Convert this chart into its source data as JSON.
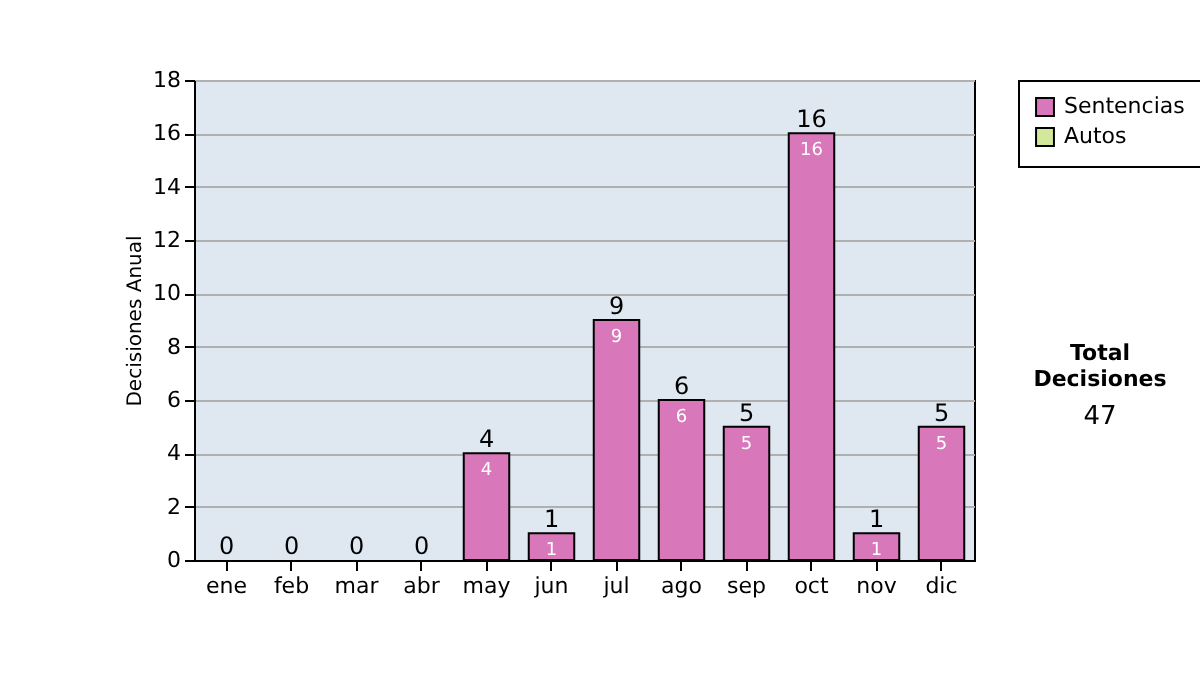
{
  "chart_data": {
    "type": "bar",
    "ylabel": "Decisiones Anual",
    "categories": [
      "ene",
      "feb",
      "mar",
      "abr",
      "may",
      "jun",
      "jul",
      "ago",
      "sep",
      "oct",
      "nov",
      "dic"
    ],
    "stacked": true,
    "series": [
      {
        "name": "Sentencias",
        "color": "#d977bb",
        "values": [
          0,
          0,
          0,
          0,
          4,
          1,
          9,
          6,
          5,
          16,
          1,
          5
        ],
        "value_labels": [
          null,
          null,
          null,
          null,
          "4",
          "1",
          "9",
          "6",
          "5",
          "16",
          "1",
          "5"
        ]
      },
      {
        "name": "Autos",
        "color": "#d4e89c",
        "values": [
          0,
          0,
          0,
          0,
          0,
          0,
          0,
          0,
          0,
          0,
          0,
          0
        ]
      }
    ],
    "totals": [
      "0",
      "0",
      "0",
      "0",
      "4",
      "1",
      "9",
      "6",
      "5",
      "16",
      "1",
      "5"
    ],
    "ylim": [
      0,
      18
    ],
    "yticks": [
      0,
      2,
      4,
      6,
      8,
      10,
      12,
      14,
      16,
      18
    ],
    "grid": "y",
    "legend": "right",
    "annotations": [
      "Total Decisiones",
      "47"
    ]
  }
}
